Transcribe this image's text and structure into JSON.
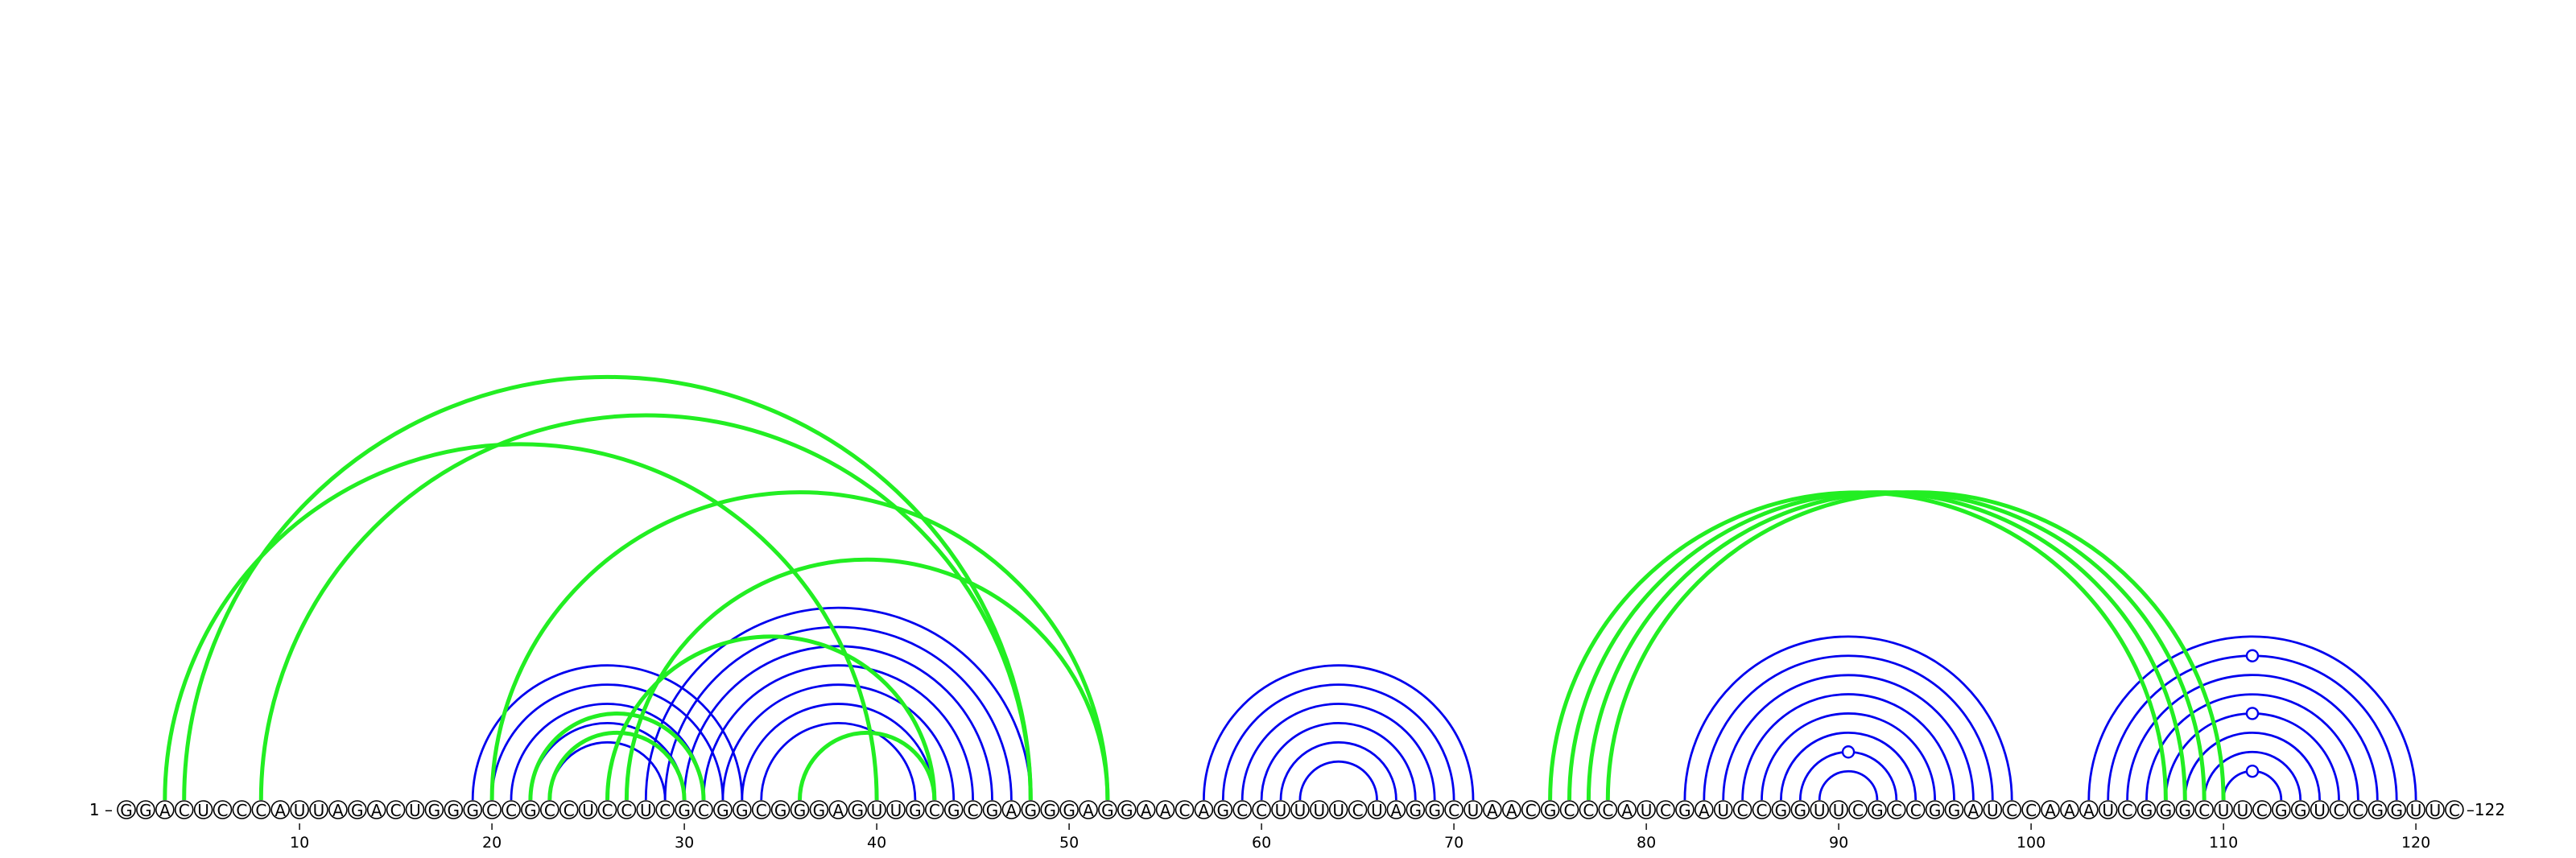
{
  "sequence": "GGACUCCCAUUAGACUGGGCCGCCUCCUCGCGGCGGGAGUUGCGCGAGGGAGGAACAGCCUUUUCUAGGCUAACGCCCAUCGAUCCGGUUCGCCGGAUCCAAAUCGGGCUUCGGUCCGGUUC",
  "length": 122,
  "start_label": "1 –",
  "end_label": "–122",
  "tick_positions": [
    10,
    20,
    30,
    40,
    50,
    60,
    70,
    80,
    90,
    100,
    110,
    120
  ],
  "tick_labels": [
    "10",
    "20",
    "30",
    "40",
    "50",
    "60",
    "70",
    "80",
    "90",
    "100",
    "110",
    "120"
  ],
  "colors": {
    "blue_pairs": "#0000ee",
    "green_pairs": "#22ee22",
    "backbone": "#000000"
  },
  "blue_pairs": [
    [
      19,
      33
    ],
    [
      20,
      32
    ],
    [
      21,
      31
    ],
    [
      22,
      30
    ],
    [
      23,
      29
    ],
    [
      28,
      48
    ],
    [
      29,
      47
    ],
    [
      30,
      46
    ],
    [
      31,
      45
    ],
    [
      32,
      44
    ],
    [
      33,
      43
    ],
    [
      34,
      42
    ],
    [
      57,
      71
    ],
    [
      58,
      70
    ],
    [
      59,
      69
    ],
    [
      60,
      68
    ],
    [
      61,
      67
    ],
    [
      62,
      66
    ],
    [
      82,
      99
    ],
    [
      83,
      98
    ],
    [
      84,
      97
    ],
    [
      85,
      96
    ],
    [
      86,
      95
    ],
    [
      87,
      94
    ],
    [
      88,
      93
    ],
    [
      89,
      92
    ],
    [
      103,
      120
    ],
    [
      104,
      119
    ],
    [
      105,
      118
    ],
    [
      106,
      117
    ],
    [
      107,
      116
    ],
    [
      108,
      115
    ],
    [
      109,
      114
    ],
    [
      110,
      113
    ]
  ],
  "green_pairs": [
    [
      3,
      40
    ],
    [
      4,
      48
    ],
    [
      8,
      48
    ],
    [
      20,
      52
    ],
    [
      22,
      31
    ],
    [
      23,
      30
    ],
    [
      26,
      43
    ],
    [
      27,
      52
    ],
    [
      36,
      43
    ],
    [
      75,
      107
    ],
    [
      76,
      108
    ],
    [
      77,
      109
    ],
    [
      78,
      110
    ]
  ],
  "blue_markers": [
    90,
    112
  ],
  "blue_marker_arcs": [
    [
      110,
      113
    ],
    [
      107,
      116
    ],
    [
      104,
      119
    ],
    [
      88,
      93
    ]
  ]
}
